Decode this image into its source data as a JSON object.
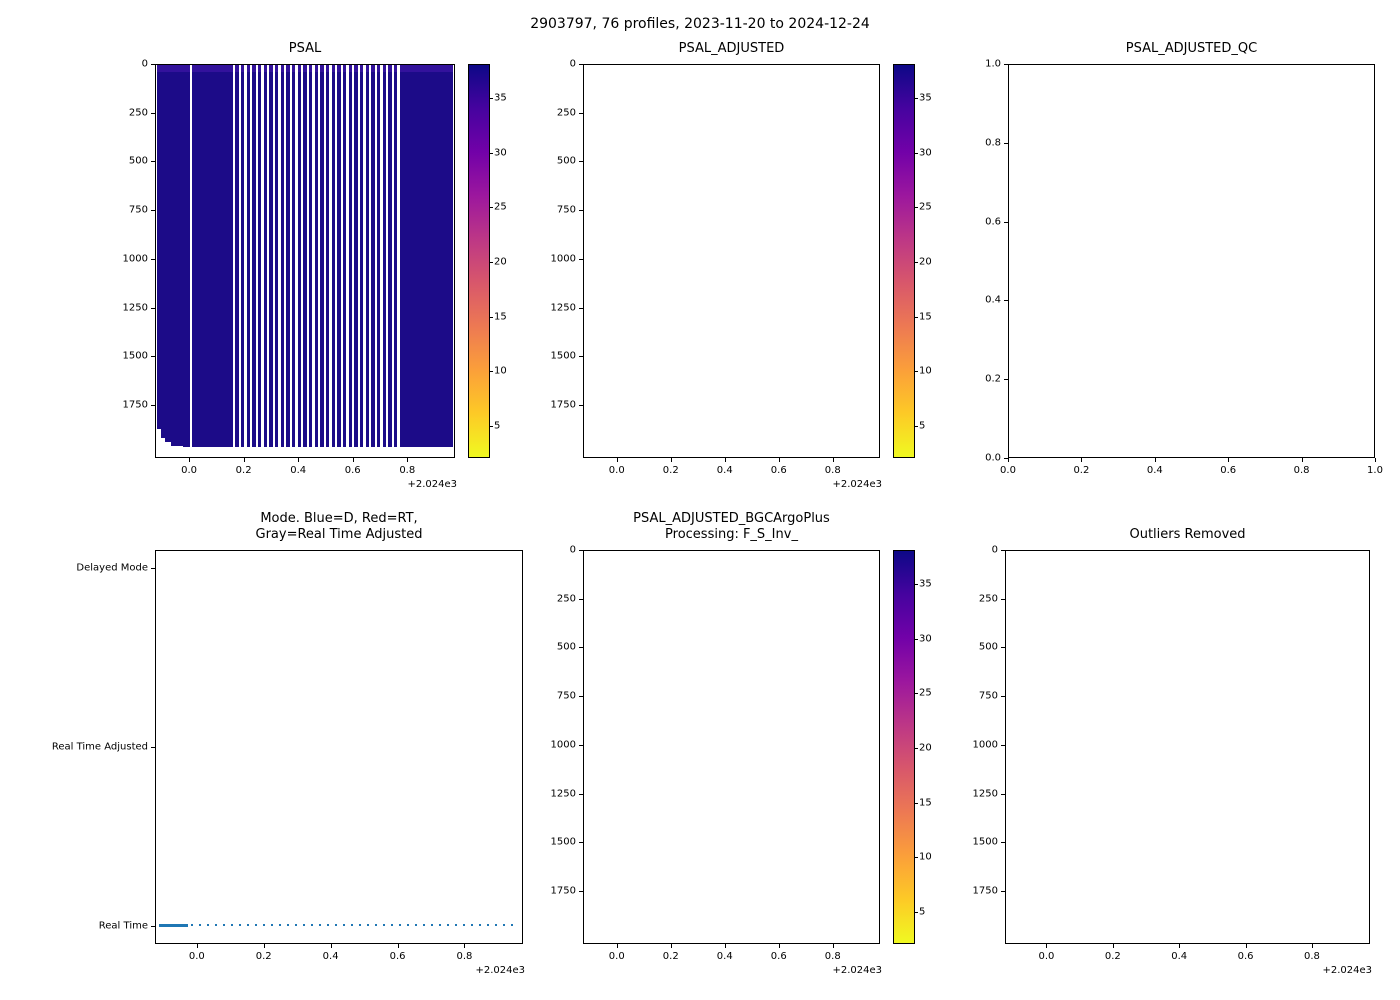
{
  "figure": {
    "title": "2903797, 76 profiles, 2023-11-20 to 2024-12-24",
    "background": "#ffffff"
  },
  "colormap": {
    "name": "plasma-reversed (dark navy = high salinity, yellow = low)",
    "stops": [
      "#0d0887",
      "#46039f",
      "#7201a8",
      "#9c179e",
      "#bd3786",
      "#d8576b",
      "#ed7953",
      "#fb9f3a",
      "#fdca26",
      "#f0f921"
    ]
  },
  "chart_data": [
    {
      "type": "heatmap",
      "title": "PSAL",
      "x": {
        "lim": [
          -0.125,
          0.975
        ],
        "tick_vals": [
          0,
          0.2,
          0.4,
          0.6,
          0.8
        ],
        "ticks": [
          "0.0",
          "0.2",
          "0.4",
          "0.6",
          "0.8"
        ],
        "offset": "+2.024e3"
      },
      "y": {
        "type": "down",
        "lim": [
          0,
          2022
        ],
        "tick_vals": [
          0,
          250,
          500,
          750,
          1000,
          1250,
          1500,
          1750
        ],
        "ticks": [
          "0",
          "250",
          "500",
          "750",
          "1000",
          "1250",
          "1500",
          "1750"
        ]
      },
      "colorbar": {
        "vmin": 2,
        "vmax": 38,
        "ticks": [
          5,
          10,
          15,
          20,
          25,
          30,
          35
        ]
      },
      "heatmap": {
        "description": "76 salinity profiles vs depth 0-~1950 dbar; values ~34.5-37 PSU render as dark navy (high end of reversed plasma scale); white vertical stripes are profiles with no data; bottom-left jagged white area = shallower early profiles",
        "base_color": "#1c0b88",
        "surface_color": "#33129c",
        "x0": 0.005,
        "x1": 0.997,
        "ybot": 0.975,
        "gaps": [
          0.115
        ],
        "stripes": {
          "x0": 0.253,
          "x1": 0.823,
          "count": 30,
          "duty": 0.42
        },
        "notch": [
          [
            0.005,
            0.928
          ],
          [
            0.017,
            0.951
          ],
          [
            0.031,
            0.962
          ],
          [
            0.05,
            0.972
          ]
        ],
        "notch_end": 0.09
      }
    },
    {
      "type": "heatmap",
      "title": "PSAL_ADJUSTED",
      "empty": true,
      "x": {
        "lim": [
          -0.125,
          0.975
        ],
        "tick_vals": [
          0,
          0.2,
          0.4,
          0.6,
          0.8
        ],
        "ticks": [
          "0.0",
          "0.2",
          "0.4",
          "0.6",
          "0.8"
        ],
        "offset": "+2.024e3"
      },
      "y": {
        "type": "down",
        "lim": [
          0,
          2022
        ],
        "tick_vals": [
          0,
          250,
          500,
          750,
          1000,
          1250,
          1500,
          1750
        ],
        "ticks": [
          "0",
          "250",
          "500",
          "750",
          "1000",
          "1250",
          "1500",
          "1750"
        ]
      },
      "colorbar": {
        "vmin": 2,
        "vmax": 38,
        "ticks": [
          5,
          10,
          15,
          20,
          25,
          30,
          35
        ]
      }
    },
    {
      "type": "heatmap",
      "title": "PSAL_ADJUSTED_QC",
      "empty": true,
      "x": {
        "lim": [
          0,
          1
        ],
        "tick_vals": [
          0,
          0.2,
          0.4,
          0.6,
          0.8,
          1.0
        ],
        "ticks": [
          "0.0",
          "0.2",
          "0.4",
          "0.6",
          "0.8",
          "1.0"
        ]
      },
      "y": {
        "type": "up",
        "lim": [
          0,
          1
        ],
        "tick_vals": [
          0,
          0.2,
          0.4,
          0.6,
          0.8,
          1.0
        ],
        "ticks": [
          "0.0",
          "0.2",
          "0.4",
          "0.6",
          "0.8",
          "1.0"
        ]
      }
    },
    {
      "type": "scatter",
      "title": "Mode. Blue=D, Red=RT,\nGray=Real Time Adjusted",
      "x": {
        "lim": [
          -0.125,
          0.975
        ],
        "tick_vals": [
          0,
          0.2,
          0.4,
          0.6,
          0.8
        ],
        "ticks": [
          "0.0",
          "0.2",
          "0.4",
          "0.6",
          "0.8"
        ],
        "offset": "+2.024e3"
      },
      "y": {
        "type": "category",
        "categories": [
          "Delayed Mode",
          "Real Time Adjusted",
          "Real Time"
        ],
        "fracs": [
          0.0455,
          0.5,
          0.9545
        ]
      },
      "line": {
        "value": "Real Time",
        "x_from": -0.115,
        "x_to": 0.967,
        "solid_to": -0.03,
        "color": "#1f77b4",
        "note": "all 76 profiles plotted as blue dots at Real Time level"
      }
    },
    {
      "type": "heatmap",
      "title": "PSAL_ADJUSTED_BGCArgoPlus\nProcessing: F_S_Inv_",
      "empty": true,
      "x": {
        "lim": [
          -0.125,
          0.975
        ],
        "tick_vals": [
          0,
          0.2,
          0.4,
          0.6,
          0.8
        ],
        "ticks": [
          "0.0",
          "0.2",
          "0.4",
          "0.6",
          "0.8"
        ],
        "offset": "+2.024e3"
      },
      "y": {
        "type": "down",
        "lim": [
          0,
          2022
        ],
        "tick_vals": [
          0,
          250,
          500,
          750,
          1000,
          1250,
          1500,
          1750
        ],
        "ticks": [
          "0",
          "250",
          "500",
          "750",
          "1000",
          "1250",
          "1500",
          "1750"
        ]
      },
      "colorbar": {
        "vmin": 2,
        "vmax": 38,
        "ticks": [
          5,
          10,
          15,
          20,
          25,
          30,
          35
        ]
      }
    },
    {
      "type": "heatmap",
      "title": "Outliers Removed",
      "empty": true,
      "x": {
        "lim": [
          -0.125,
          0.975
        ],
        "tick_vals": [
          0,
          0.2,
          0.4,
          0.6,
          0.8
        ],
        "ticks": [
          "0.0",
          "0.2",
          "0.4",
          "0.6",
          "0.8"
        ],
        "offset": "+2.024e3"
      },
      "y": {
        "type": "down",
        "lim": [
          0,
          2022
        ],
        "tick_vals": [
          0,
          250,
          500,
          750,
          1000,
          1250,
          1500,
          1750
        ],
        "ticks": [
          "0",
          "250",
          "500",
          "750",
          "1000",
          "1250",
          "1500",
          "1750"
        ]
      }
    }
  ]
}
